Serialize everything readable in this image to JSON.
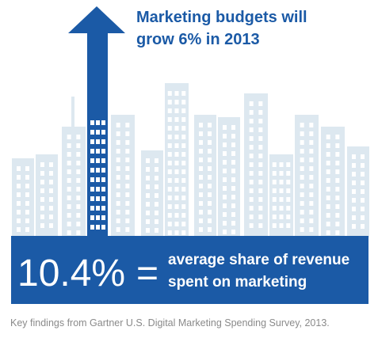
{
  "headline": {
    "lines": [
      "Marketing budgets will",
      "grow 6% in 2013"
    ]
  },
  "banner": {
    "figure": "10.4%",
    "sign": "=",
    "lines": [
      "average share of revenue",
      "spent on marketing"
    ]
  },
  "caption": "Key findings from Gartner U.S. Digital Marketing Spending Survey, 2013."
}
